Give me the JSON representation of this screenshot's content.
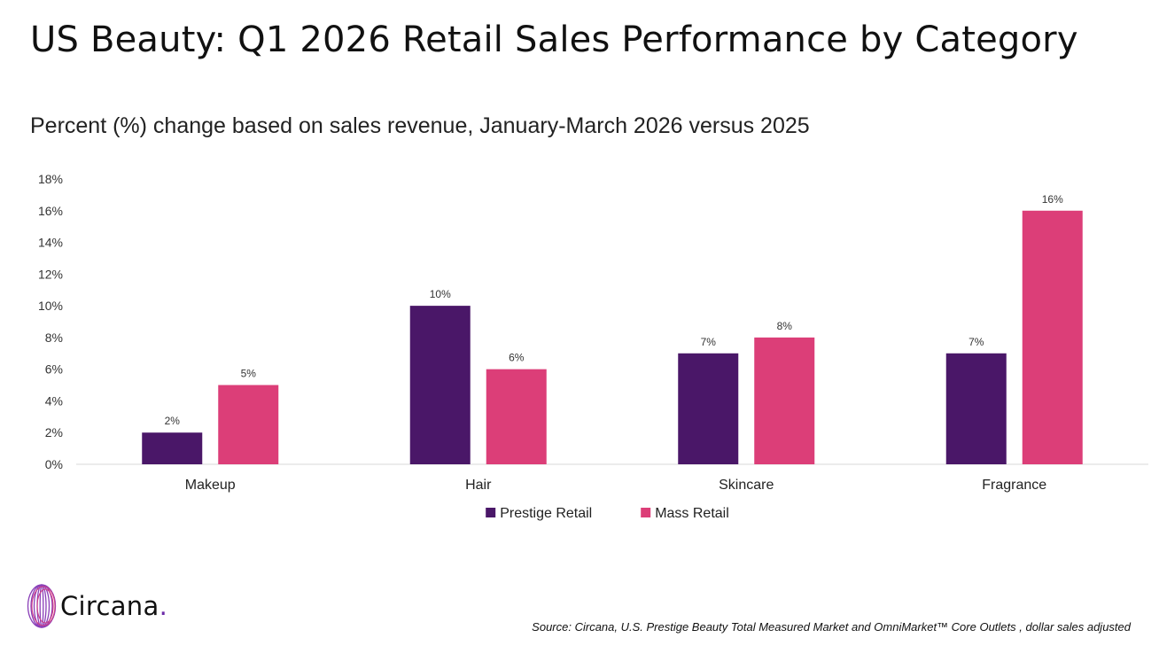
{
  "header": {
    "title": "US Beauty: Q1 2026 Retail Sales Performance by Category",
    "subtitle": "Percent (%) change based on sales revenue, January-March 2026 versus 2025"
  },
  "chart_data": {
    "type": "bar",
    "categories": [
      "Makeup",
      "Hair",
      "Skincare",
      "Fragrance"
    ],
    "series": [
      {
        "name": "Prestige Retail",
        "values": [
          2,
          10,
          7,
          7
        ],
        "color": "#4a1768"
      },
      {
        "name": "Mass Retail",
        "values": [
          5,
          6,
          8,
          16
        ],
        "color": "#dc3e78"
      }
    ],
    "yticks": [
      "0%",
      "2%",
      "4%",
      "6%",
      "8%",
      "10%",
      "12%",
      "14%",
      "16%",
      "18%"
    ],
    "ylim": [
      0,
      18
    ],
    "value_suffix": "%",
    "grid": false,
    "legend_position": "bottom-center"
  },
  "footer": {
    "logo_text": "Circana",
    "logo_dot": ".",
    "logo_icon": "circana-sphere-icon",
    "source": "Source: Circana, U.S. Prestige Beauty Total Measured Market and OmniMarket™ Core Outlets , dollar sales adjusted"
  }
}
